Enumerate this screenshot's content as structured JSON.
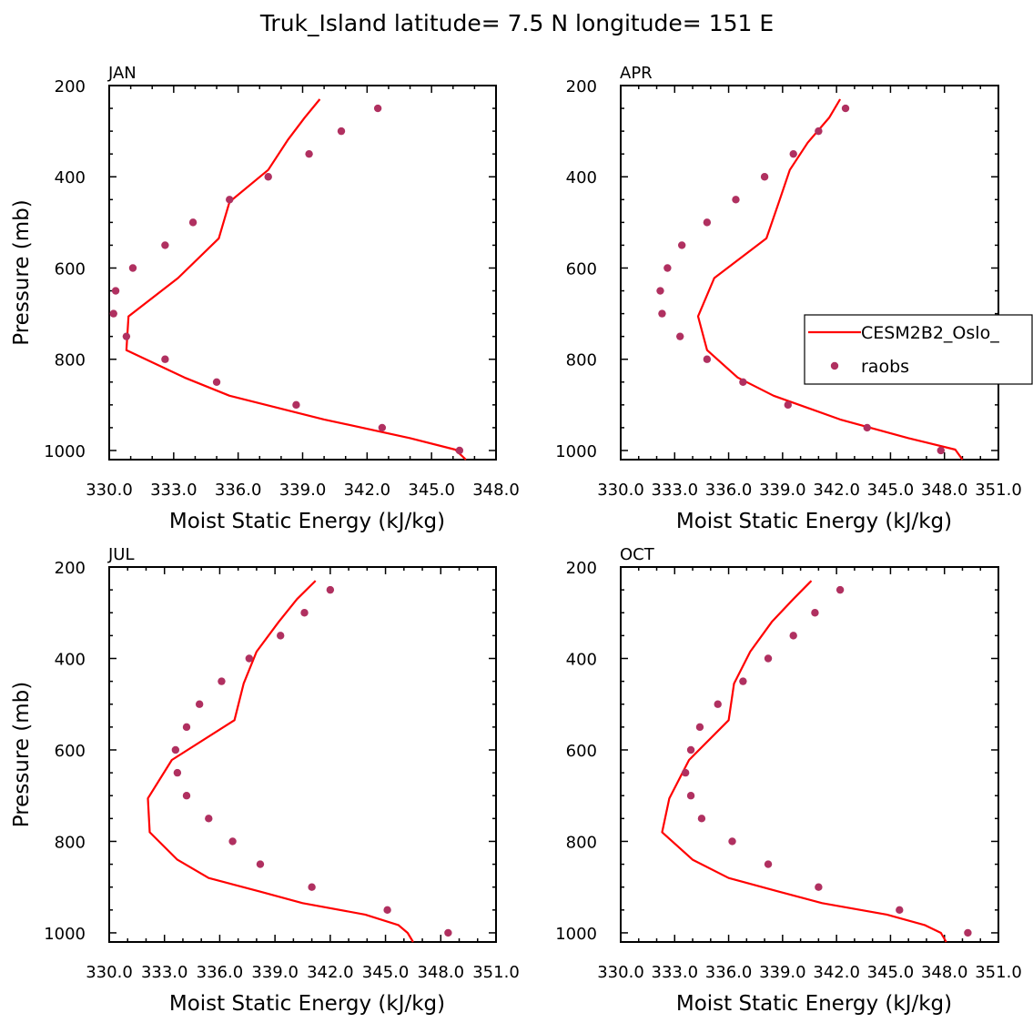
{
  "title": "Truk_Island  latitude= 7.5 N longitude= 151 E",
  "colors": {
    "model": "#ff0000",
    "obs": "#b03060",
    "axis": "#000000"
  },
  "legend": {
    "model_label": "CESM2B2_Oslo_",
    "obs_label": "raobs"
  },
  "chart_data": [
    {
      "type": "line",
      "panel": "JAN",
      "xlabel": "Moist Static Energy (kJ/kg)",
      "ylabel": "Pressure (mb)",
      "xlim": [
        330.0,
        348.0
      ],
      "ylim": [
        1020,
        200
      ],
      "xticks": [
        330.0,
        333.0,
        336.0,
        339.0,
        342.0,
        345.0,
        348.0
      ],
      "xtick_labels": [
        "330.0",
        "333.0",
        "336.0",
        "339.0",
        "342.0",
        "345.0",
        "348.0"
      ],
      "yticks": [
        200,
        400,
        600,
        800,
        1000
      ],
      "ytick_labels": [
        "200",
        "400",
        "600",
        "800",
        "1000"
      ],
      "model": {
        "pressure": [
          230,
          270,
          320,
          385,
          455,
          535,
          622,
          706,
          780,
          840,
          880,
          932,
          973,
          998,
          1020
        ],
        "mse": [
          339.8,
          339.1,
          338.3,
          337.4,
          335.6,
          335.1,
          333.2,
          330.9,
          330.8,
          333.5,
          335.6,
          340.0,
          344.0,
          346.1,
          346.6
        ]
      },
      "raobs": {
        "pressure": [
          250,
          300,
          350,
          400,
          450,
          500,
          550,
          600,
          650,
          700,
          750,
          800,
          850,
          900,
          950,
          1000
        ],
        "mse": [
          342.5,
          340.8,
          339.3,
          337.4,
          335.6,
          333.9,
          332.6,
          331.1,
          330.3,
          330.2,
          330.8,
          332.6,
          335.0,
          338.7,
          342.7,
          346.3
        ]
      }
    },
    {
      "type": "line",
      "panel": "APR",
      "legend": "right",
      "xlabel": "Moist Static Energy (kJ/kg)",
      "ylabel": "",
      "xlim": [
        330.0,
        351.0
      ],
      "ylim": [
        1020,
        200
      ],
      "xticks": [
        330.0,
        333.0,
        336.0,
        339.0,
        342.0,
        345.0,
        348.0,
        351.0
      ],
      "xtick_labels": [
        "330.0",
        "333.0",
        "336.0",
        "339.0",
        "342.0",
        "345.0",
        "348.0",
        "351.0"
      ],
      "yticks": [
        200,
        400,
        600,
        800,
        1000
      ],
      "ytick_labels": [
        "200",
        "400",
        "600",
        "800",
        "1000"
      ],
      "model": {
        "pressure": [
          230,
          270,
          325,
          385,
          455,
          535,
          622,
          706,
          780,
          840,
          880,
          932,
          973,
          998,
          1020
        ],
        "mse": [
          342.2,
          341.6,
          340.4,
          339.4,
          338.8,
          338.1,
          335.2,
          334.3,
          334.8,
          336.5,
          338.5,
          342.2,
          346.0,
          348.6,
          349.0
        ]
      },
      "raobs": {
        "pressure": [
          250,
          300,
          350,
          400,
          450,
          500,
          550,
          600,
          650,
          700,
          750,
          800,
          850,
          900,
          950,
          1000
        ],
        "mse": [
          342.5,
          341.0,
          339.6,
          338.0,
          336.4,
          334.8,
          333.4,
          332.6,
          332.2,
          332.3,
          333.3,
          334.8,
          336.8,
          339.3,
          343.7,
          347.8
        ]
      }
    },
    {
      "type": "line",
      "panel": "JUL",
      "xlabel": "Moist Static Energy (kJ/kg)",
      "ylabel": "Pressure (mb)",
      "xlim": [
        330.0,
        351.0
      ],
      "ylim": [
        1020,
        200
      ],
      "xticks": [
        330.0,
        333.0,
        336.0,
        339.0,
        342.0,
        345.0,
        348.0,
        351.0
      ],
      "xtick_labels": [
        "330.0",
        "333.0",
        "336.0",
        "339.0",
        "342.0",
        "345.0",
        "348.0",
        "351.0"
      ],
      "yticks": [
        200,
        400,
        600,
        800,
        1000
      ],
      "ytick_labels": [
        "200",
        "400",
        "600",
        "800",
        "1000"
      ],
      "model": {
        "pressure": [
          230,
          270,
          320,
          385,
          455,
          535,
          622,
          706,
          780,
          840,
          880,
          910,
          935,
          960,
          983,
          1000,
          1020
        ],
        "mse": [
          341.2,
          340.2,
          339.2,
          338.0,
          337.3,
          336.8,
          333.4,
          332.1,
          332.2,
          333.7,
          335.4,
          338.2,
          340.5,
          343.9,
          345.7,
          346.2,
          346.5
        ]
      },
      "raobs": {
        "pressure": [
          250,
          300,
          350,
          400,
          450,
          500,
          550,
          600,
          650,
          700,
          750,
          800,
          850,
          900,
          950,
          1000
        ],
        "mse": [
          342.0,
          340.6,
          339.3,
          337.6,
          336.1,
          334.9,
          334.2,
          333.6,
          333.7,
          334.2,
          335.4,
          336.7,
          338.2,
          341.0,
          345.1,
          348.4
        ]
      }
    },
    {
      "type": "line",
      "panel": "OCT",
      "xlabel": "Moist Static Energy (kJ/kg)",
      "ylabel": "",
      "xlim": [
        330.0,
        351.0
      ],
      "ylim": [
        1020,
        200
      ],
      "xticks": [
        330.0,
        333.0,
        336.0,
        339.0,
        342.0,
        345.0,
        348.0,
        351.0
      ],
      "xtick_labels": [
        "330.0",
        "333.0",
        "336.0",
        "339.0",
        "342.0",
        "345.0",
        "348.0",
        "351.0"
      ],
      "yticks": [
        200,
        400,
        600,
        800,
        1000
      ],
      "ytick_labels": [
        "200",
        "400",
        "600",
        "800",
        "1000"
      ],
      "model": {
        "pressure": [
          230,
          270,
          320,
          385,
          455,
          535,
          622,
          706,
          780,
          840,
          880,
          910,
          935,
          960,
          983,
          1000,
          1020
        ],
        "mse": [
          340.6,
          339.6,
          338.4,
          337.2,
          336.3,
          336.0,
          333.8,
          332.7,
          332.3,
          334.0,
          336.0,
          338.8,
          341.2,
          344.8,
          346.9,
          347.8,
          348.1
        ]
      },
      "raobs": {
        "pressure": [
          250,
          300,
          350,
          400,
          450,
          500,
          550,
          600,
          650,
          700,
          750,
          800,
          850,
          900,
          950,
          1000
        ],
        "mse": [
          342.2,
          340.8,
          339.6,
          338.2,
          336.8,
          335.4,
          334.4,
          333.9,
          333.6,
          333.9,
          334.5,
          336.2,
          338.2,
          341.0,
          345.5,
          349.3
        ]
      }
    }
  ]
}
